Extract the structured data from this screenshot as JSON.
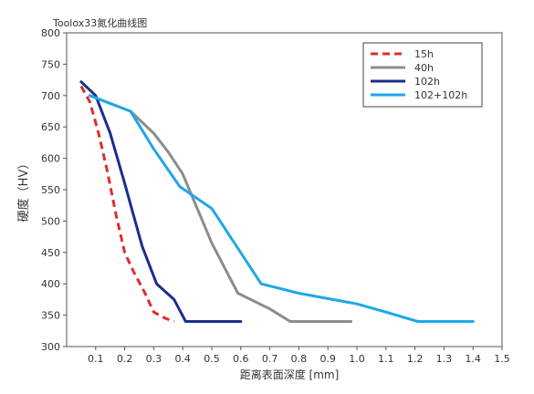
{
  "chart_data": {
    "type": "line",
    "title": "Toolox33氮化曲线图",
    "xlabel": "距离表面深度 [mm]",
    "ylabel": "硬度（HV）",
    "xlim": [
      0,
      1.5
    ],
    "ylim": [
      300,
      800
    ],
    "x_ticks": [
      "0.1",
      "0.2",
      "0.3",
      "0.4",
      "0.5",
      "0.6",
      "0.7",
      "0.8",
      "0.9",
      "1.0",
      "1.1",
      "1.2",
      "1.3",
      "1.4",
      "1.5"
    ],
    "y_ticks": [
      "300",
      "350",
      "400",
      "450",
      "500",
      "550",
      "600",
      "650",
      "700",
      "750",
      "800"
    ],
    "grid": false,
    "legend_position": "top-right",
    "series": [
      {
        "name": "15h",
        "color": "#d9302a",
        "dash": true,
        "x": [
          0.05,
          0.08,
          0.11,
          0.14,
          0.17,
          0.2,
          0.23,
          0.27,
          0.3,
          0.34,
          0.37
        ],
        "y": [
          715,
          690,
          640,
          580,
          510,
          450,
          420,
          385,
          355,
          345,
          340
        ]
      },
      {
        "name": "40h",
        "color": "#8c8c8c",
        "dash": false,
        "x": [
          0.08,
          0.22,
          0.3,
          0.35,
          0.4,
          0.5,
          0.59,
          0.7,
          0.77,
          0.98
        ],
        "y": [
          700,
          675,
          640,
          610,
          575,
          465,
          385,
          360,
          340,
          340
        ]
      },
      {
        "name": "102h",
        "color": "#1a2e8c",
        "dash": false,
        "x": [
          0.05,
          0.1,
          0.15,
          0.2,
          0.26,
          0.31,
          0.37,
          0.41,
          0.6
        ],
        "y": [
          722,
          700,
          640,
          560,
          460,
          400,
          375,
          340,
          340
        ]
      },
      {
        "name": "102+102h",
        "color": "#1ea7e8",
        "dash": false,
        "x": [
          0.08,
          0.22,
          0.3,
          0.39,
          0.5,
          0.67,
          0.8,
          1.0,
          1.1,
          1.21,
          1.4
        ],
        "y": [
          700,
          675,
          615,
          555,
          520,
          400,
          385,
          368,
          355,
          340,
          340
        ]
      }
    ]
  }
}
